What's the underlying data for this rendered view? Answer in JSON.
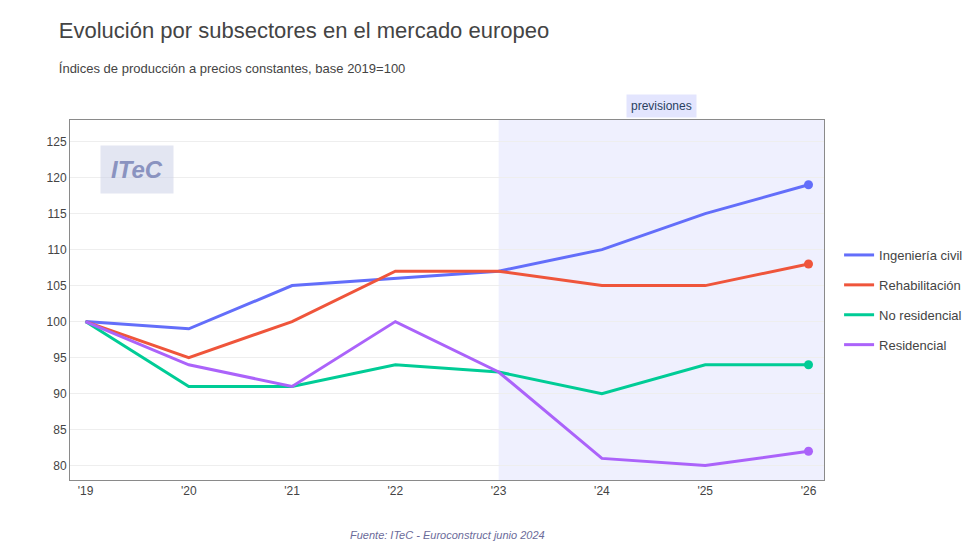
{
  "chart_data": {
    "type": "line",
    "title": "Evolución por subsectores en el mercado europeo",
    "subtitle": "Índices de producción a precios constantes, base 2019=100",
    "source": "Fuente: ITeC - Euroconstruct junio 2024",
    "x": [
      2019,
      2020,
      2021,
      2022,
      2023,
      2024,
      2025,
      2026
    ],
    "xlim": [
      2018.85,
      2026.15
    ],
    "xticks": [
      {
        "value": 2019,
        "label": "'19"
      },
      {
        "value": 2020,
        "label": "'20"
      },
      {
        "value": 2021,
        "label": "'21"
      },
      {
        "value": 2022,
        "label": "'22"
      },
      {
        "value": 2023,
        "label": "'23"
      },
      {
        "value": 2024,
        "label": "'24"
      },
      {
        "value": 2025,
        "label": "'25"
      },
      {
        "value": 2026,
        "label": "'26"
      }
    ],
    "ylim": [
      78,
      128
    ],
    "yticks": [
      80,
      85,
      90,
      95,
      100,
      105,
      110,
      115,
      120,
      125
    ],
    "grid": true,
    "series": [
      {
        "name": "Ingeniería civil",
        "values": [
          100,
          99,
          105,
          106,
          107,
          110,
          115,
          119
        ]
      },
      {
        "name": "Rehabilitación",
        "values": [
          100,
          95,
          100,
          107,
          107,
          105,
          105,
          108
        ]
      },
      {
        "name": "No residencial",
        "values": [
          100,
          91,
          91,
          94,
          93,
          90,
          94,
          94
        ]
      },
      {
        "name": "Residencial",
        "values": [
          100,
          94,
          91,
          100,
          93,
          81,
          80,
          82
        ]
      }
    ],
    "forecast": {
      "start": 2023,
      "label": "previsiones"
    },
    "watermark": "ITeC"
  }
}
